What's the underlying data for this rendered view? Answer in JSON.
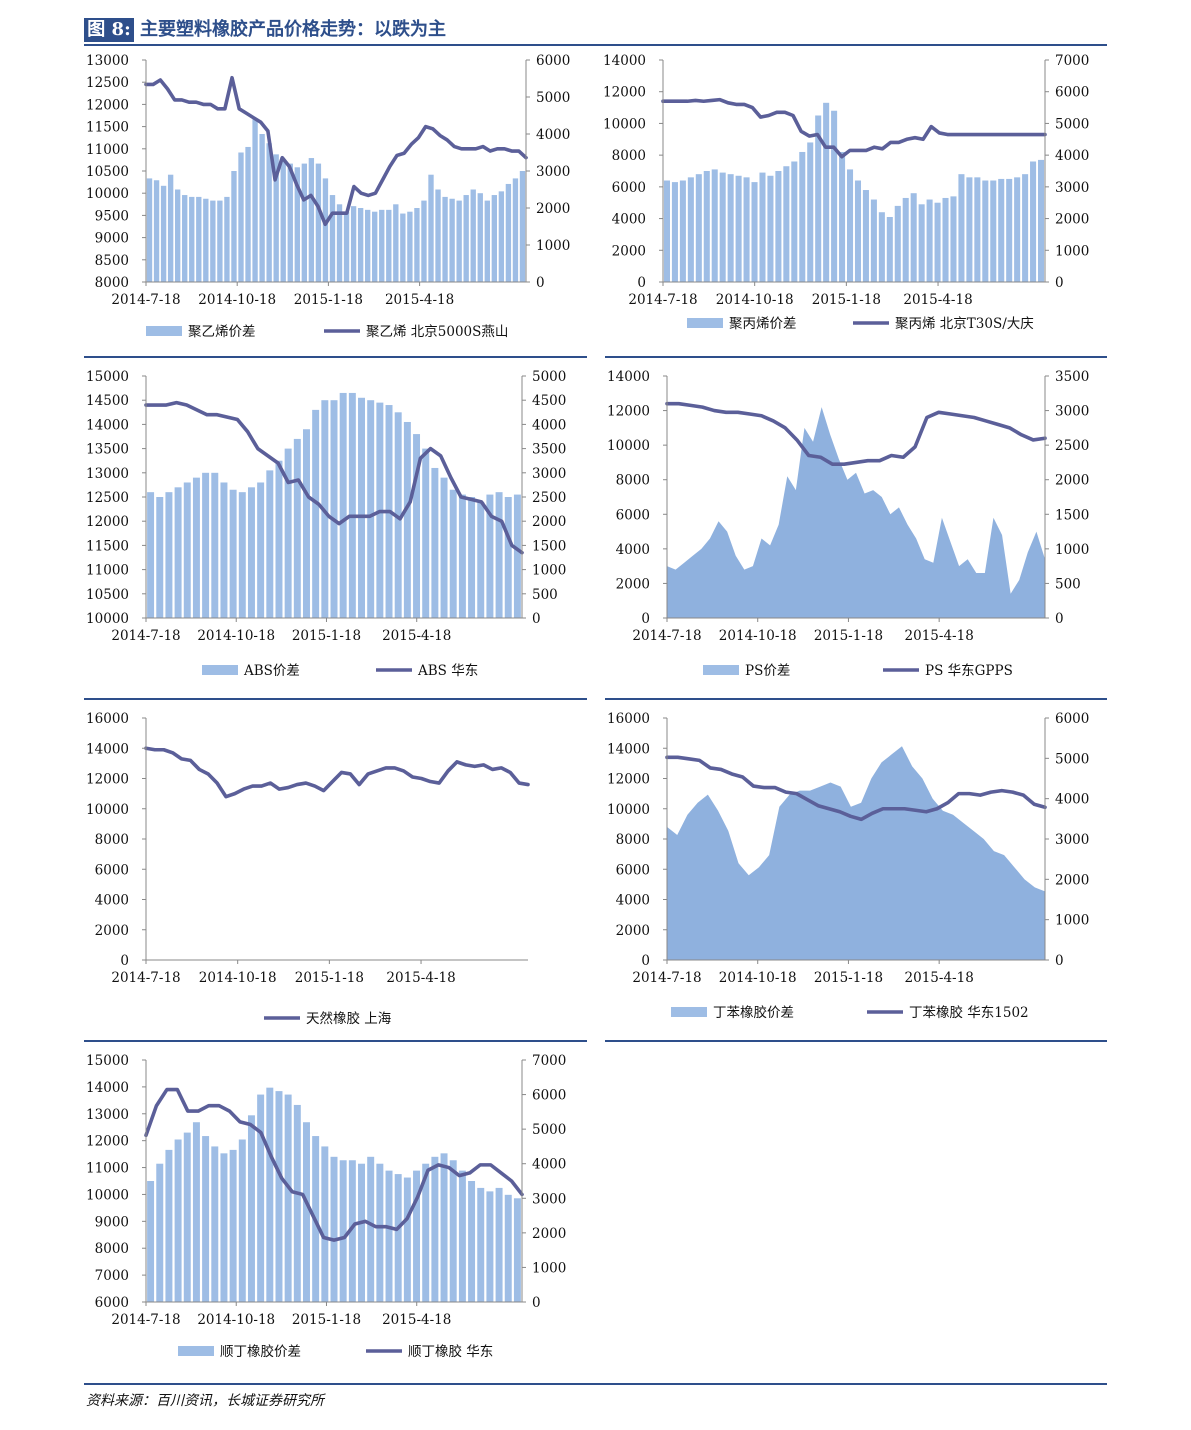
{
  "header": {
    "label": "图 8:",
    "title": "主要塑料橡胶产品价格走势：以跌为主"
  },
  "colors": {
    "accent": "#2e4f8b",
    "bar": "#9ebde5",
    "area": "#8fb1de",
    "line": "#5b5f99"
  },
  "source": "资料来源：百川资讯，长城证券研究所",
  "chart_data": [
    {
      "id": "pe",
      "type": "bar+line",
      "left_axis": {
        "min": 8000,
        "max": 13000,
        "ticks": [
          "13000",
          "12500",
          "12000",
          "11500",
          "11000",
          "10500",
          "10000",
          "9500",
          "9000",
          "8500",
          "8000"
        ]
      },
      "right_axis": {
        "min": 0,
        "max": 6000,
        "ticks": [
          "6000",
          "5000",
          "4000",
          "3000",
          "2000",
          "1000",
          "0"
        ]
      },
      "x_ticks": [
        "2014-7-18",
        "2014-10-18",
        "2015-1-18",
        "2015-4-18"
      ],
      "bar_series": {
        "name": "聚乙烯价差",
        "axis": "right",
        "style": "bars",
        "values": [
          2800,
          2750,
          2600,
          2900,
          2500,
          2350,
          2300,
          2300,
          2250,
          2200,
          2200,
          2300,
          3000,
          3500,
          3650,
          4400,
          4000,
          3750,
          3450,
          3300,
          3200,
          3100,
          3200,
          3350,
          3200,
          2800,
          2350,
          2100,
          1900,
          2050,
          2000,
          1950,
          1900,
          1950,
          1950,
          2100,
          1850,
          1900,
          2000,
          2200,
          2900,
          2500,
          2300,
          2250,
          2200,
          2350,
          2500,
          2400,
          2200,
          2350,
          2450,
          2650,
          2800,
          3000
        ]
      },
      "line_series": {
        "name": "聚乙烯 北京5000S燕山",
        "axis": "left",
        "values": [
          12450,
          12450,
          12550,
          12350,
          12100,
          12100,
          12050,
          12050,
          12000,
          12000,
          11900,
          11900,
          12600,
          11900,
          11800,
          11700,
          11600,
          11400,
          10300,
          10800,
          10600,
          10200,
          9850,
          9950,
          9700,
          9300,
          9550,
          9550,
          9550,
          10150,
          10000,
          9950,
          10000,
          10300,
          10600,
          10850,
          10900,
          11100,
          11250,
          11500,
          11450,
          11300,
          11200,
          11050,
          11000,
          11000,
          11000,
          11050,
          10950,
          11000,
          11000,
          10950,
          10950,
          10800
        ]
      },
      "legend": [
        "聚乙烯价差",
        "聚乙烯 北京5000S燕山"
      ]
    },
    {
      "id": "pp",
      "type": "bar+line",
      "left_axis": {
        "min": 0,
        "max": 14000,
        "ticks": [
          "14000",
          "12000",
          "10000",
          "8000",
          "6000",
          "4000",
          "2000",
          "0"
        ]
      },
      "right_axis": {
        "min": 0,
        "max": 7000,
        "ticks": [
          "7000",
          "6000",
          "5000",
          "4000",
          "3000",
          "2000",
          "1000",
          "0"
        ]
      },
      "x_ticks": [
        "2014-7-18",
        "2014-10-18",
        "2015-1-18",
        "2015-4-18"
      ],
      "bar_series": {
        "name": "聚丙烯价差",
        "axis": "right",
        "style": "bars",
        "values": [
          3200,
          3150,
          3200,
          3300,
          3400,
          3500,
          3550,
          3450,
          3400,
          3350,
          3300,
          3150,
          3450,
          3350,
          3500,
          3650,
          3800,
          4100,
          4400,
          5250,
          5650,
          5400,
          4100,
          3550,
          3200,
          2900,
          2600,
          2200,
          2050,
          2400,
          2650,
          2800,
          2450,
          2600,
          2500,
          2650,
          2700,
          3400,
          3300,
          3300,
          3200,
          3200,
          3250,
          3250,
          3300,
          3400,
          3800,
          3850
        ]
      },
      "line_series": {
        "name": "聚丙烯 北京T30S/大庆",
        "axis": "left",
        "values": [
          11400,
          11400,
          11400,
          11400,
          11450,
          11400,
          11450,
          11500,
          11300,
          11200,
          11200,
          11000,
          10400,
          10500,
          10700,
          10700,
          10500,
          9500,
          9200,
          9300,
          8500,
          8500,
          7900,
          8300,
          8300,
          8300,
          8500,
          8400,
          8800,
          8800,
          9000,
          9100,
          9000,
          9800,
          9400,
          9300,
          9300,
          9300,
          9300,
          9300,
          9300,
          9300,
          9300,
          9300,
          9300,
          9300,
          9300,
          9300
        ]
      },
      "legend": [
        "聚丙烯价差",
        "聚丙烯 北京T30S/大庆"
      ]
    },
    {
      "id": "abs",
      "type": "bar+line",
      "left_axis": {
        "min": 10000,
        "max": 15000,
        "ticks": [
          "15000",
          "14500",
          "14000",
          "13500",
          "13000",
          "12500",
          "12000",
          "11500",
          "11000",
          "10500",
          "10000"
        ]
      },
      "right_axis": {
        "min": 0,
        "max": 5000,
        "ticks": [
          "5000",
          "4500",
          "4000",
          "3500",
          "3000",
          "2500",
          "2000",
          "1500",
          "1000",
          "500",
          "0"
        ]
      },
      "x_ticks": [
        "2014-7-18",
        "2014-10-18",
        "2015-1-18",
        "2015-4-18"
      ],
      "bar_series": {
        "name": "ABS价差",
        "axis": "right",
        "style": "bars",
        "values": [
          2600,
          2500,
          2600,
          2700,
          2800,
          2900,
          3000,
          3000,
          2800,
          2650,
          2600,
          2700,
          2800,
          3050,
          3250,
          3500,
          3700,
          3900,
          4300,
          4500,
          4500,
          4650,
          4650,
          4550,
          4500,
          4450,
          4400,
          4250,
          4050,
          3800,
          3500,
          3100,
          2900,
          2650,
          2550,
          2500,
          2400,
          2550,
          2600,
          2500,
          2550
        ]
      },
      "line_series": {
        "name": "ABS 华东",
        "axis": "left",
        "values": [
          14400,
          14400,
          14400,
          14450,
          14400,
          14300,
          14200,
          14200,
          14150,
          14100,
          13850,
          13500,
          13350,
          13200,
          12800,
          12850,
          12500,
          12350,
          12100,
          11950,
          12100,
          12100,
          12100,
          12200,
          12200,
          12050,
          12400,
          13300,
          13500,
          13350,
          12900,
          12500,
          12450,
          12400,
          12100,
          12000,
          11500,
          11350
        ]
      },
      "legend": [
        "ABS价差",
        "ABS 华东"
      ]
    },
    {
      "id": "ps",
      "type": "area+line",
      "left_axis": {
        "min": 0,
        "max": 14000,
        "ticks": [
          "14000",
          "12000",
          "10000",
          "8000",
          "6000",
          "4000",
          "2000",
          "0"
        ]
      },
      "right_axis": {
        "min": 0,
        "max": 3500,
        "ticks": [
          "3500",
          "3000",
          "2500",
          "2000",
          "1500",
          "1000",
          "500",
          "0"
        ]
      },
      "x_ticks": [
        "2014-7-18",
        "2014-10-18",
        "2015-1-18",
        "2015-4-18"
      ],
      "bar_series": {
        "name": "PS价差",
        "axis": "right",
        "style": "area",
        "values": [
          750,
          700,
          800,
          900,
          1000,
          1150,
          1400,
          1250,
          900,
          700,
          750,
          1150,
          1050,
          1350,
          2050,
          1850,
          2750,
          2550,
          3050,
          2650,
          2300,
          2000,
          2100,
          1800,
          1850,
          1750,
          1500,
          1600,
          1350,
          1150,
          850,
          800,
          1450,
          1100,
          750,
          850,
          650,
          650,
          1450,
          1200,
          350,
          550,
          950,
          1250,
          850
        ]
      },
      "line_series": {
        "name": "PS 华东GPPS",
        "axis": "left",
        "values": [
          12400,
          12400,
          12300,
          12200,
          12000,
          11900,
          11900,
          11800,
          11700,
          11400,
          11000,
          10300,
          9400,
          9300,
          8900,
          8900,
          9000,
          9100,
          9100,
          9400,
          9300,
          9900,
          11600,
          11900,
          11800,
          11700,
          11600,
          11400,
          11200,
          11000,
          10600,
          10300,
          10400
        ]
      },
      "legend": [
        "PS价差",
        "PS 华东GPPS"
      ]
    },
    {
      "id": "nr",
      "type": "line",
      "left_axis": {
        "min": 0,
        "max": 16000,
        "ticks": [
          "16000",
          "14000",
          "12000",
          "10000",
          "8000",
          "6000",
          "4000",
          "2000",
          "0"
        ]
      },
      "x_ticks": [
        "2014-7-18",
        "2014-10-18",
        "2015-1-18",
        "2015-4-18"
      ],
      "line_series": {
        "name": "天然橡胶 上海",
        "axis": "left",
        "values": [
          14000,
          13900,
          13900,
          13700,
          13300,
          13200,
          12600,
          12300,
          11700,
          10800,
          11000,
          11300,
          11500,
          11500,
          11700,
          11300,
          11400,
          11600,
          11700,
          11500,
          11200,
          11800,
          12400,
          12300,
          11600,
          12300,
          12500,
          12700,
          12700,
          12500,
          12100,
          12000,
          11800,
          11700,
          12500,
          13100,
          12900,
          12800,
          12900,
          12600,
          12700,
          12400,
          11700,
          11600
        ]
      },
      "legend": [
        "天然橡胶 上海"
      ]
    },
    {
      "id": "sbr",
      "type": "area+line",
      "left_axis": {
        "min": 0,
        "max": 16000,
        "ticks": [
          "16000",
          "14000",
          "12000",
          "10000",
          "8000",
          "6000",
          "4000",
          "2000",
          "0"
        ]
      },
      "right_axis": {
        "min": 0,
        "max": 6000,
        "ticks": [
          "6000",
          "5000",
          "4000",
          "3000",
          "2000",
          "1000",
          "0"
        ]
      },
      "x_ticks": [
        "2014-7-18",
        "2014-10-18",
        "2015-1-18",
        "2015-4-18"
      ],
      "bar_series": {
        "name": "丁苯橡胶价差",
        "axis": "right",
        "style": "area",
        "values": [
          3300,
          3100,
          3600,
          3900,
          4100,
          3700,
          3200,
          2400,
          2100,
          2300,
          2600,
          3800,
          4100,
          4200,
          4200,
          4300,
          4400,
          4300,
          3800,
          3900,
          4500,
          4900,
          5100,
          5300,
          4800,
          4500,
          4000,
          3700,
          3600,
          3400,
          3200,
          3000,
          2700,
          2600,
          2300,
          2000,
          1800,
          1700
        ]
      },
      "line_series": {
        "name": "丁苯橡胶 华东1502",
        "axis": "left",
        "values": [
          13400,
          13400,
          13300,
          13200,
          12700,
          12600,
          12300,
          12100,
          11500,
          11400,
          11400,
          11100,
          11000,
          10600,
          10200,
          10000,
          9800,
          9500,
          9300,
          9700,
          10000,
          10000,
          10000,
          9900,
          9800,
          10000,
          10400,
          11000,
          11000,
          10900,
          11100,
          11200,
          11100,
          10900,
          10300,
          10100
        ]
      },
      "legend": [
        "丁苯橡胶价差",
        "丁苯橡胶 华东1502"
      ]
    },
    {
      "id": "br",
      "type": "bar+line",
      "left_axis": {
        "min": 6000,
        "max": 15000,
        "ticks": [
          "15000",
          "14000",
          "13000",
          "12000",
          "11000",
          "10000",
          "9000",
          "8000",
          "7000",
          "6000"
        ]
      },
      "right_axis": {
        "min": 0,
        "max": 7000,
        "ticks": [
          "7000",
          "6000",
          "5000",
          "4000",
          "3000",
          "2000",
          "1000",
          "0"
        ]
      },
      "x_ticks": [
        "2014-7-18",
        "2014-10-18",
        "2015-1-18",
        "2015-4-18"
      ],
      "bar_series": {
        "name": "顺丁橡胶价差",
        "axis": "right",
        "style": "bars",
        "values": [
          3500,
          4000,
          4400,
          4700,
          4900,
          5200,
          4800,
          4500,
          4300,
          4400,
          4700,
          5400,
          6000,
          6200,
          6100,
          6000,
          5700,
          5200,
          4800,
          4500,
          4200,
          4100,
          4100,
          4000,
          4200,
          4000,
          3800,
          3700,
          3600,
          3800,
          4000,
          4200,
          4300,
          4100,
          3800,
          3500,
          3300,
          3200,
          3300,
          3100,
          3000
        ]
      },
      "line_series": {
        "name": "顺丁橡胶 华东",
        "axis": "left",
        "values": [
          12200,
          13300,
          13900,
          13900,
          13100,
          13100,
          13300,
          13300,
          13100,
          12700,
          12600,
          12300,
          11400,
          10600,
          10100,
          10000,
          9200,
          8400,
          8300,
          8400,
          8900,
          9000,
          8800,
          8800,
          8700,
          9100,
          9900,
          10900,
          11100,
          11000,
          10700,
          10800,
          11100,
          11100,
          10800,
          10500,
          10000
        ]
      },
      "legend": [
        "顺丁橡胶价差",
        "顺丁橡胶 华东"
      ]
    }
  ]
}
